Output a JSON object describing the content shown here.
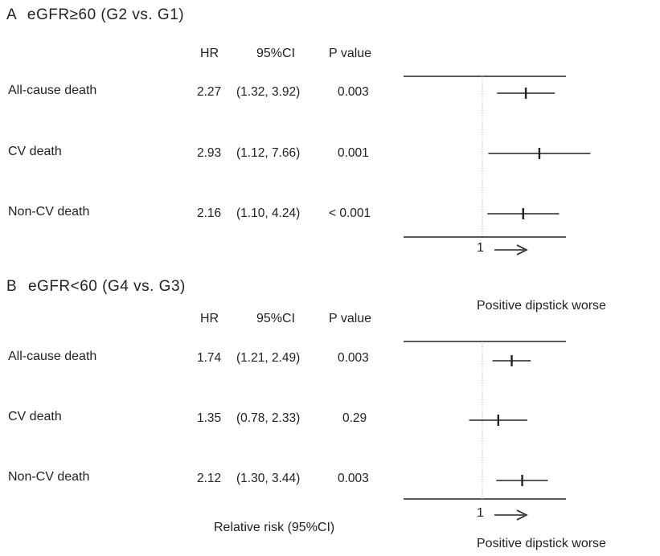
{
  "chart_data": [
    {
      "type": "forest",
      "panel_letter": "A",
      "title": "eGFR≥60 (G2 vs. G1)",
      "columns": [
        "HR",
        "95%CI",
        "P value"
      ],
      "rows": [
        {
          "label": "All-cause death",
          "hr": 2.27,
          "ci_low": 1.32,
          "ci_high": 3.92,
          "hr_text": "2.27",
          "ci_text": "(1.32, 3.92)",
          "p_text": "0.003"
        },
        {
          "label": "CV death",
          "hr": 2.93,
          "ci_low": 1.12,
          "ci_high": 7.66,
          "hr_text": "2.93",
          "ci_text": "(1.12, 7.66)",
          "p_text": "0.001"
        },
        {
          "label": "Non-CV death",
          "hr": 2.16,
          "ci_low": 1.1,
          "ci_high": 4.24,
          "hr_text": "2.16",
          "ci_text": "(1.10, 4.24)",
          "p_text": "< 0.001"
        }
      ],
      "reference_value": 1,
      "axis_tick_label": "1",
      "direction_note": "Positive dipstick worse"
    },
    {
      "type": "forest",
      "panel_letter": "B",
      "title": "eGFR<60 (G4 vs. G3)",
      "columns": [
        "HR",
        "95%CI",
        "P value"
      ],
      "rows": [
        {
          "label": "All-cause death",
          "hr": 1.74,
          "ci_low": 1.21,
          "ci_high": 2.49,
          "hr_text": "1.74",
          "ci_text": "(1.21, 2.49)",
          "p_text": "0.003"
        },
        {
          "label": "CV death",
          "hr": 1.35,
          "ci_low": 0.78,
          "ci_high": 2.33,
          "hr_text": "1.35",
          "ci_text": "(0.78, 2.33)",
          "p_text": "0.29"
        },
        {
          "label": "Non-CV death",
          "hr": 2.12,
          "ci_low": 1.3,
          "ci_high": 3.44,
          "hr_text": "2.12",
          "ci_text": "(1.30, 3.44)",
          "p_text": "0.003"
        }
      ],
      "reference_value": 1,
      "axis_tick_label": "1",
      "direction_note": "Positive dipstick worse",
      "xlabel": "Relative risk (95%CI)"
    }
  ]
}
